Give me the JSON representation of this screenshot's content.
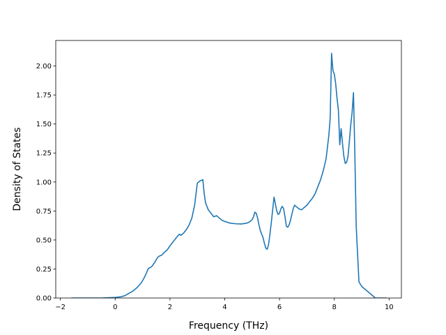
{
  "chart_data": {
    "type": "line",
    "title": "",
    "xlabel": "Frequency (THz)",
    "ylabel": "Density of States",
    "xlim": [
      -2.17,
      10.45
    ],
    "ylim": [
      0,
      2.22
    ],
    "xticks": [
      -2,
      0,
      2,
      4,
      6,
      8,
      10
    ],
    "xtick_labels": [
      "−2",
      "0",
      "2",
      "4",
      "6",
      "8",
      "10"
    ],
    "yticks": [
      0,
      0.25,
      0.5,
      0.75,
      1.0,
      1.25,
      1.5,
      1.75,
      2.0
    ],
    "ytick_labels": [
      "0.00",
      "0.25",
      "0.50",
      "0.75",
      "1.00",
      "1.25",
      "1.50",
      "1.75",
      "2.00"
    ],
    "grid": false,
    "color": "#1f77b4",
    "series": [
      {
        "x": [
          -1.6,
          -1.0,
          -0.5,
          0.0,
          0.2,
          0.35,
          0.5,
          0.65,
          0.8,
          0.95,
          1.05,
          1.15,
          1.2,
          1.25,
          1.3,
          1.35,
          1.45,
          1.55,
          1.6,
          1.7,
          1.8,
          1.9,
          2.0,
          2.1,
          2.2,
          2.3,
          2.35,
          2.4,
          2.5,
          2.6,
          2.7,
          2.8,
          2.9,
          3.0,
          3.05,
          3.1,
          3.2,
          3.25,
          3.3,
          3.4,
          3.5,
          3.6,
          3.7,
          3.8,
          3.9,
          4.0,
          4.2,
          4.4,
          4.6,
          4.8,
          4.9,
          5.0,
          5.05,
          5.1,
          5.15,
          5.2,
          5.25,
          5.3,
          5.35,
          5.4,
          5.45,
          5.5,
          5.55,
          5.6,
          5.65,
          5.7,
          5.75,
          5.8,
          5.85,
          5.9,
          5.95,
          6.0,
          6.05,
          6.1,
          6.15,
          6.2,
          6.25,
          6.3,
          6.35,
          6.4,
          6.45,
          6.5,
          6.55,
          6.6,
          6.7,
          6.8,
          6.9,
          7.0,
          7.1,
          7.2,
          7.3,
          7.4,
          7.5,
          7.6,
          7.7,
          7.75,
          7.8,
          7.85,
          7.9,
          7.95,
          8.0,
          8.05,
          8.1,
          8.15,
          8.2,
          8.25,
          8.3,
          8.35,
          8.4,
          8.45,
          8.5,
          8.55,
          8.6,
          8.65,
          8.7,
          8.75,
          8.8,
          8.9,
          9.0,
          9.5,
          9.9
        ],
        "y": [
          0,
          0,
          0,
          0.005,
          0.01,
          0.02,
          0.04,
          0.06,
          0.09,
          0.13,
          0.17,
          0.22,
          0.25,
          0.26,
          0.265,
          0.275,
          0.31,
          0.35,
          0.36,
          0.37,
          0.395,
          0.415,
          0.45,
          0.48,
          0.51,
          0.54,
          0.55,
          0.54,
          0.56,
          0.59,
          0.63,
          0.69,
          0.8,
          0.99,
          1.0,
          1.01,
          1.02,
          0.9,
          0.82,
          0.76,
          0.73,
          0.7,
          0.71,
          0.69,
          0.67,
          0.66,
          0.645,
          0.64,
          0.638,
          0.645,
          0.655,
          0.675,
          0.7,
          0.74,
          0.73,
          0.69,
          0.63,
          0.58,
          0.55,
          0.52,
          0.47,
          0.43,
          0.42,
          0.46,
          0.55,
          0.65,
          0.76,
          0.87,
          0.81,
          0.75,
          0.72,
          0.73,
          0.77,
          0.79,
          0.77,
          0.7,
          0.62,
          0.61,
          0.63,
          0.67,
          0.72,
          0.77,
          0.8,
          0.79,
          0.77,
          0.76,
          0.78,
          0.8,
          0.83,
          0.86,
          0.9,
          0.96,
          1.02,
          1.1,
          1.2,
          1.3,
          1.4,
          1.55,
          2.11,
          1.96,
          1.93,
          1.85,
          1.72,
          1.62,
          1.32,
          1.46,
          1.33,
          1.22,
          1.16,
          1.17,
          1.22,
          1.35,
          1.49,
          1.6,
          1.77,
          1.25,
          0.62,
          0.14,
          0.1,
          0.0,
          0.0
        ]
      }
    ]
  }
}
